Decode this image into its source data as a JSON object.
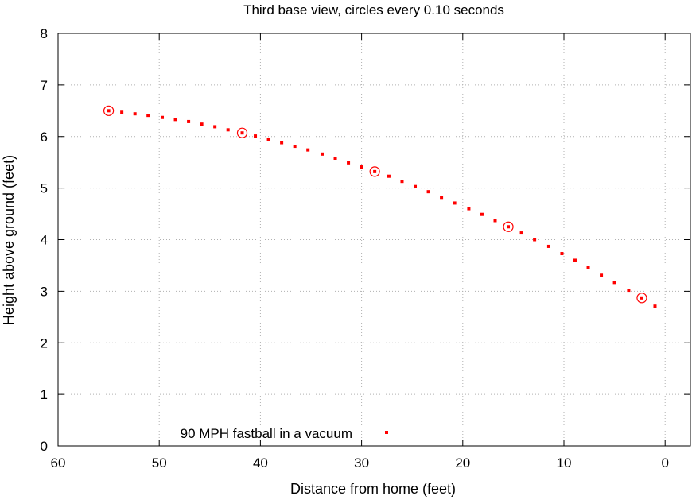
{
  "chart_data": {
    "type": "scatter",
    "title": "Third base view, circles every 0.10 seconds",
    "xlabel": "Distance from home (feet)",
    "ylabel": "Height above ground (feet)",
    "xlim": [
      60,
      -2.5
    ],
    "ylim": [
      0,
      8
    ],
    "x_reversed": true,
    "xticks": [
      60,
      50,
      40,
      30,
      20,
      10,
      0
    ],
    "yticks": [
      0,
      1,
      2,
      3,
      4,
      5,
      6,
      7,
      8
    ],
    "grid": true,
    "legend_position": "bottom-center",
    "series": [
      {
        "name": "90 MPH fastball in a vacuum",
        "marker": "square",
        "color": "#ff0000",
        "x": [
          55.0,
          53.7,
          52.4,
          51.1,
          49.7,
          48.4,
          47.1,
          45.8,
          44.5,
          43.2,
          41.8,
          40.5,
          39.2,
          37.9,
          36.6,
          35.3,
          33.9,
          32.6,
          31.3,
          30.0,
          28.7,
          27.3,
          26.0,
          24.7,
          23.4,
          22.1,
          20.8,
          19.4,
          18.1,
          16.8,
          15.5,
          14.2,
          12.9,
          11.5,
          10.2,
          8.9,
          7.6,
          6.3,
          5.0,
          3.6,
          2.3,
          1.0
        ],
        "y": [
          6.5,
          6.47,
          6.44,
          6.41,
          6.37,
          6.33,
          6.29,
          6.24,
          6.19,
          6.13,
          6.07,
          6.01,
          5.95,
          5.88,
          5.81,
          5.74,
          5.66,
          5.58,
          5.49,
          5.41,
          5.32,
          5.23,
          5.13,
          5.03,
          4.93,
          4.82,
          4.71,
          4.6,
          4.49,
          4.37,
          4.25,
          4.13,
          4.0,
          3.87,
          3.73,
          3.6,
          3.46,
          3.31,
          3.17,
          3.02,
          2.87,
          2.71
        ]
      }
    ],
    "circles": {
      "x": [
        55.0,
        41.8,
        28.7,
        15.5,
        2.3
      ],
      "y": [
        6.5,
        6.07,
        5.32,
        4.25,
        2.87
      ],
      "color": "#ff0000"
    }
  }
}
